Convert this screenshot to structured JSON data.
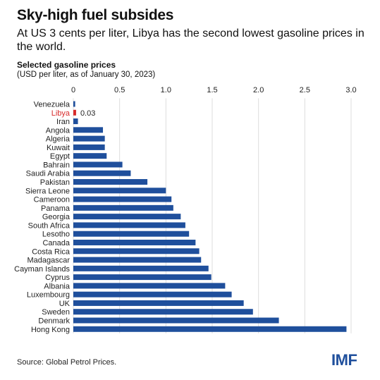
{
  "title": "Sky-high fuel subsides",
  "subtitle": "At US 3 cents per liter, Libya has the second lowest gasoline prices in the world.",
  "source": "Source: Global Petrol Prices.",
  "logo": "IMF",
  "colors": {
    "bar": "#1f4f9c",
    "highlight": "#d72b2b",
    "gridline": "#dddddd",
    "text": "#111111"
  },
  "chart_data": {
    "type": "bar",
    "orientation": "horizontal",
    "title": "Selected gasoline prices",
    "subtitle": "(USD per liter, as of January 30, 2023)",
    "xlim": [
      0,
      3.0
    ],
    "xticks": [
      "0",
      "0.5",
      "1.0",
      "1.5",
      "2.0",
      "2.5",
      "3.0"
    ],
    "xtick_values": [
      0,
      0.5,
      1.0,
      1.5,
      2.0,
      2.5,
      3.0
    ],
    "grid": true,
    "categories": [
      "Venezuela",
      "Libya",
      "Iran",
      "Angola",
      "Algeria",
      "Kuwait",
      "Egypt",
      "Bahrain",
      "Saudi Arabia",
      "Pakistan",
      "Sierra Leone",
      "Cameroon",
      "Panama",
      "Georgia",
      "South Africa",
      "Lesotho",
      "Canada",
      "Costa Rica",
      "Madagascar",
      "Cayman Islands",
      "Cyprus",
      "Albania",
      "Luxembourg",
      "UK",
      "Sweden",
      "Denmark",
      "Hong Kong"
    ],
    "values": [
      0.02,
      0.03,
      0.05,
      0.32,
      0.34,
      0.34,
      0.36,
      0.53,
      0.62,
      0.8,
      1.0,
      1.06,
      1.08,
      1.16,
      1.21,
      1.25,
      1.32,
      1.36,
      1.38,
      1.46,
      1.49,
      1.64,
      1.71,
      1.84,
      1.94,
      2.22,
      2.95
    ],
    "highlight": "Libya",
    "highlight_label": "0.03"
  }
}
